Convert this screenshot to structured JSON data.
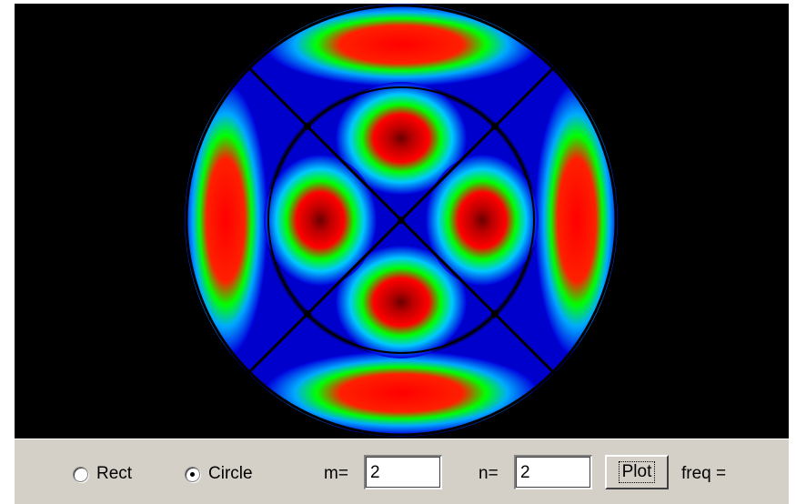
{
  "controls": {
    "mode_options": [
      {
        "label": "Rect",
        "selected": false
      },
      {
        "label": "Circle",
        "selected": true
      }
    ],
    "m_label": "m=",
    "m_value": "2",
    "n_label": "n=",
    "n_value": "2",
    "plot_label": "Plot",
    "freq_label": "freq ="
  },
  "plot": {
    "shape": "circle",
    "m": 2,
    "n": 2,
    "colors": {
      "background": "#000000",
      "low": "#0000cc",
      "mid_low": "#1e90ff",
      "mid": "#00ff00",
      "high": "#ff0000",
      "peak": "#8b0000",
      "nodal_line": "#000000"
    }
  }
}
